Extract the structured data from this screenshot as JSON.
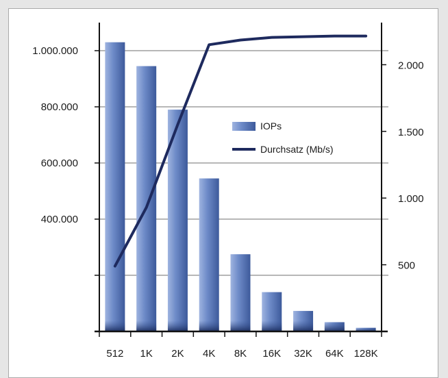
{
  "chart_data": {
    "type": "bar",
    "categories": [
      "512",
      "1K",
      "2K",
      "4K",
      "8K",
      "16K",
      "32K",
      "64K",
      "128K"
    ],
    "series": [
      {
        "name": "IOPs",
        "type": "bar",
        "axis": "left",
        "values": [
          1030000,
          945000,
          790000,
          545000,
          275000,
          140000,
          73000,
          33000,
          13000
        ]
      },
      {
        "name": "Durchsatz (Mb/s)",
        "type": "line",
        "axis": "right",
        "values": [
          490,
          930,
          1550,
          2150,
          2185,
          2205,
          2210,
          2215,
          2215
        ]
      }
    ],
    "y_left": {
      "ylim": [
        0,
        1100000
      ],
      "ticks": [
        200000,
        400000,
        600000,
        800000,
        1000000
      ],
      "tick_labels": [
        "",
        "400.000",
        "600.000",
        "800.000",
        "1.000.000"
      ]
    },
    "y_right": {
      "ylim": [
        0,
        2250
      ],
      "ticks": [
        500,
        1000,
        1500,
        2000
      ],
      "tick_labels": [
        "500",
        "1.000",
        "1.500",
        "2.000"
      ]
    },
    "grid": true,
    "legend": "center-right",
    "colors": {
      "bar": "#5b78b8",
      "line": "#1e2a5e"
    }
  }
}
